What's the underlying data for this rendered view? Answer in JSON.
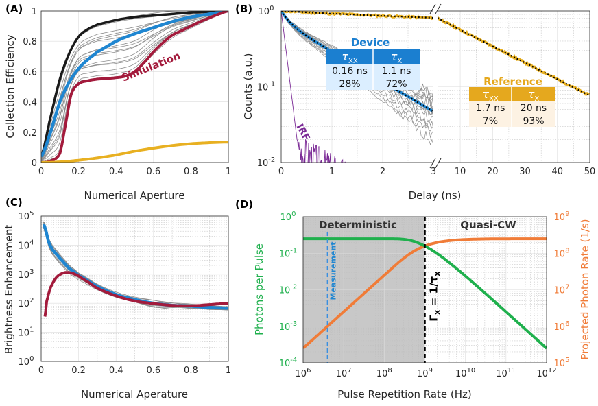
{
  "colors": {
    "black": "#1a1a1a",
    "blue": "#1f86d1",
    "crimson": "#a31b3c",
    "gold": "#e8b021",
    "gray": "#8c8c8c",
    "purple": "#7b2a96",
    "green": "#1fb04d",
    "orange": "#f07c38",
    "shade": "#c8c8c8",
    "dash_blue": "#3a8fe0",
    "table_head_blue": "#1b7fd0",
    "table_cell_blue": "#dbeeff",
    "table_head_gold": "#e5a81e",
    "table_cell_gold": "#fdf2e3"
  },
  "panels": {
    "A": {
      "label": "(A)"
    },
    "B": {
      "label": "(B)"
    },
    "C": {
      "label": "(C)"
    },
    "D": {
      "label": "(D)"
    }
  },
  "chart_data": [
    {
      "id": "A",
      "type": "line",
      "xlabel": "Numerical Aperture",
      "ylabel": "Collection Efficiency",
      "xlim": [
        0,
        1
      ],
      "ylim": [
        0,
        1
      ],
      "xticks": [
        "0",
        "0.2",
        "0.4",
        "0.6",
        "0.8",
        "1"
      ],
      "yticks": [
        "0",
        "0.2",
        "0.4",
        "0.6",
        "0.8",
        "1"
      ],
      "annotation": "Simulation",
      "series": [
        {
          "name": "black",
          "x": [
            0,
            0.05,
            0.1,
            0.15,
            0.2,
            0.25,
            0.3,
            0.4,
            0.5,
            0.6,
            0.7,
            0.8,
            0.9,
            1.0
          ],
          "y": [
            0.04,
            0.3,
            0.55,
            0.72,
            0.83,
            0.88,
            0.91,
            0.94,
            0.96,
            0.97,
            0.98,
            0.99,
            0.995,
            1.0
          ]
        },
        {
          "name": "blue",
          "x": [
            0,
            0.05,
            0.1,
            0.15,
            0.2,
            0.25,
            0.3,
            0.4,
            0.5,
            0.6,
            0.7,
            0.8,
            0.9,
            1.0
          ],
          "y": [
            0.04,
            0.2,
            0.4,
            0.53,
            0.62,
            0.68,
            0.73,
            0.8,
            0.85,
            0.89,
            0.93,
            0.96,
            0.98,
            1.0
          ]
        },
        {
          "name": "crimson",
          "x": [
            0,
            0.05,
            0.1,
            0.13,
            0.16,
            0.2,
            0.25,
            0.3,
            0.35,
            0.4,
            0.45,
            0.5,
            0.55,
            0.6,
            0.65,
            0.7,
            0.75,
            0.8,
            0.85,
            0.9,
            0.95,
            1.0
          ],
          "y": [
            0.0,
            0.01,
            0.06,
            0.25,
            0.45,
            0.52,
            0.54,
            0.55,
            0.555,
            0.56,
            0.57,
            0.6,
            0.66,
            0.73,
            0.79,
            0.84,
            0.87,
            0.9,
            0.93,
            0.955,
            0.98,
            1.0
          ]
        },
        {
          "name": "gold",
          "x": [
            0,
            0.1,
            0.2,
            0.3,
            0.4,
            0.5,
            0.6,
            0.7,
            0.8,
            0.9,
            1.0
          ],
          "y": [
            0.0,
            0.004,
            0.015,
            0.03,
            0.05,
            0.075,
            0.095,
            0.112,
            0.124,
            0.131,
            0.135
          ]
        }
      ]
    },
    {
      "id": "B",
      "type": "line",
      "xlabel": "Delay (ns)",
      "ylabel": "Counts (a.u.)",
      "xlim_left": [
        0,
        3
      ],
      "xlim_right": [
        3,
        50
      ],
      "ylim_log10": [
        -2,
        0
      ],
      "xticks_left": [
        "0",
        "1",
        "2",
        "3"
      ],
      "xticks_right": [
        "10",
        "20",
        "30",
        "40",
        "50"
      ],
      "yticks": [
        {
          "b": "10",
          "e": "0"
        },
        {
          "b": "10",
          "e": "-1"
        },
        {
          "b": "10",
          "e": "-2"
        }
      ],
      "irf_label": "IRF",
      "device_table": {
        "title": "Device",
        "h1": "τ",
        "s1": "XX",
        "h2": "τ",
        "s2": "X",
        "r1c1": "0.16 ns",
        "r1c2": "1.1 ns",
        "r2c1": "28%",
        "r2c2": "72%"
      },
      "reference_table": {
        "title": "Reference",
        "h1": "τ",
        "s1": "XX",
        "h2": "τ",
        "s2": "X",
        "r1c1": "1.7 ns",
        "r1c2": "20 ns",
        "r2c1": "7%",
        "r2c2": "93%"
      },
      "device_model": {
        "a_xx": 0.28,
        "tau_xx": 0.16,
        "a_x": 0.72,
        "tau_x": 1.1
      },
      "reference_model": {
        "a_xx": 0.07,
        "tau_xx": 1.7,
        "a_x": 0.93,
        "tau_x": 20
      }
    },
    {
      "id": "C",
      "type": "line",
      "xlabel": "Numerical Aperature",
      "ylabel": "Brightness Enhancement",
      "xlim": [
        0,
        1
      ],
      "ylim_log10": [
        0,
        5
      ],
      "xticks": [
        "0",
        "0.2",
        "0.4",
        "0.6",
        "0.8",
        "1"
      ],
      "yticks": [
        {
          "b": "10",
          "e": "0"
        },
        {
          "b": "10",
          "e": "1"
        },
        {
          "b": "10",
          "e": "2"
        },
        {
          "b": "10",
          "e": "3"
        },
        {
          "b": "10",
          "e": "4"
        },
        {
          "b": "10",
          "e": "5"
        }
      ],
      "series": [
        {
          "name": "blue",
          "x": [
            0.01,
            0.02,
            0.04,
            0.06,
            0.1,
            0.15,
            0.2,
            0.3,
            0.4,
            0.5,
            0.6,
            0.7,
            0.8,
            0.9,
            1.0
          ],
          "y": [
            50000,
            40000,
            13000,
            7000,
            3500,
            1600,
            900,
            380,
            200,
            135,
            100,
            85,
            80,
            72,
            68
          ]
        },
        {
          "name": "crimson",
          "x": [
            0.02,
            0.03,
            0.05,
            0.08,
            0.11,
            0.14,
            0.18,
            0.22,
            0.3,
            0.4,
            0.5,
            0.6,
            0.7,
            0.8,
            0.9,
            1.0
          ],
          "y": [
            35,
            120,
            350,
            750,
            1050,
            1150,
            1000,
            700,
            330,
            180,
            120,
            98,
            85,
            82,
            90,
            100
          ]
        }
      ]
    },
    {
      "id": "D",
      "type": "line",
      "xlabel": "Pulse Repetition Rate (Hz)",
      "ylabel_left": "Photons per Pulse",
      "ylabel_right": "Projected Photon Rate (1/s)",
      "xlim_log10": [
        6,
        12
      ],
      "ylim_left_log10": [
        -4,
        0
      ],
      "ylim_right_log10": [
        5,
        9
      ],
      "xticks": [
        {
          "b": "10",
          "e": "6"
        },
        {
          "b": "10",
          "e": "7"
        },
        {
          "b": "10",
          "e": "8"
        },
        {
          "b": "10",
          "e": "9"
        },
        {
          "b": "10",
          "e": "10"
        },
        {
          "b": "10",
          "e": "11"
        },
        {
          "b": "10",
          "e": "12"
        }
      ],
      "yticks_left": [
        {
          "b": "10",
          "e": "0"
        },
        {
          "b": "10",
          "e": "-1"
        },
        {
          "b": "10",
          "e": "-2"
        },
        {
          "b": "10",
          "e": "-3"
        },
        {
          "b": "10",
          "e": "-4"
        }
      ],
      "yticks_right": [
        {
          "b": "10",
          "e": "9"
        },
        {
          "b": "10",
          "e": "8"
        },
        {
          "b": "10",
          "e": "7"
        },
        {
          "b": "10",
          "e": "6"
        },
        {
          "b": "10",
          "e": "5"
        }
      ],
      "region_left": "Deterministic",
      "region_right": "Quasi-CW",
      "measurement_label": "Measurement",
      "measurement_x_hz": 4000000,
      "gamma_label": "Γ",
      "gamma_sub": "X",
      "gamma_eq": " = 1/τ",
      "gamma_sub2": "X",
      "gamma_x_hz": 1000000000,
      "p_max": 0.25,
      "gamma_hz": 1000000000
    }
  ]
}
